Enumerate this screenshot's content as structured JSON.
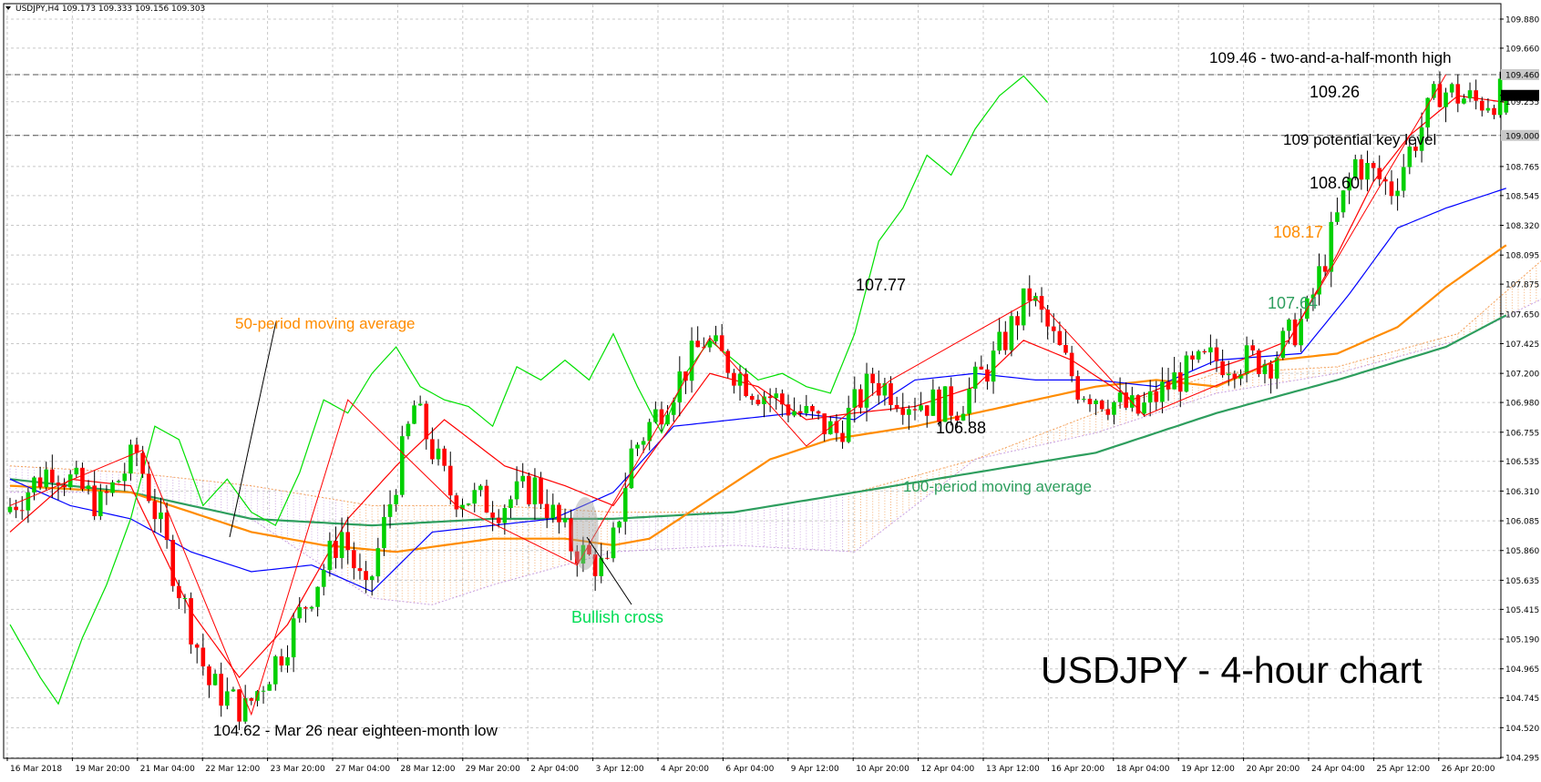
{
  "header": {
    "symbol_info": "USDJPY,H4  109.173 109.333 109.156 109.303"
  },
  "title": "USDJPY - 4-hour chart",
  "price_axis": {
    "ticks": [
      "109.880",
      "109.660",
      "109.460",
      "109.303",
      "109.255",
      "109.000",
      "108.765",
      "108.545",
      "108.320",
      "108.095",
      "107.875",
      "107.650",
      "107.425",
      "107.200",
      "106.980",
      "106.755",
      "106.535",
      "106.310",
      "106.085",
      "105.860",
      "105.635",
      "105.415",
      "105.190",
      "104.965",
      "104.745",
      "104.520",
      "104.295"
    ],
    "current_price": "109.303",
    "highlight_levels": [
      "109.460",
      "109.000"
    ]
  },
  "time_axis": {
    "ticks": [
      "16 Mar 2018",
      "19 Mar 20:00",
      "21 Mar 04:00",
      "22 Mar 12:00",
      "23 Mar 20:00",
      "27 Mar 04:00",
      "28 Mar 12:00",
      "29 Mar 20:00",
      "2 Apr 04:00",
      "3 Apr 12:00",
      "4 Apr 20:00",
      "6 Apr 04:00",
      "9 Apr 12:00",
      "10 Apr 20:00",
      "12 Apr 04:00",
      "13 Apr 12:00",
      "16 Apr 20:00",
      "18 Apr 04:00",
      "19 Apr 12:00",
      "20 Apr 20:00",
      "24 Apr 04:00",
      "25 Apr 12:00",
      "26 Apr 20:00"
    ]
  },
  "annotations": {
    "high": "109.46 -  two-and-a-half-month high",
    "last": "109.26",
    "key_level": "109 potential key level",
    "kijun_val": "108.60",
    "ma50_val": "108.17",
    "ma100_val": "107.64",
    "peak": "107.77",
    "trough": "106.88",
    "ma50_label": "50-period moving average",
    "ma100_label": "100-period moving average",
    "bullish_cross": "Bullish cross",
    "low": "104.62 - Mar 26 near eighteen-month low"
  },
  "colors": {
    "bull": "#00d000",
    "bear": "#ff0000",
    "tenkan": "#ff0000",
    "kijun": "#0000ff",
    "chikou": "#00e000",
    "ma50": "#ff8c00",
    "ma100": "#2e9e5e",
    "cloud_up": "#f4a460",
    "cloud_down": "#c8a0e0",
    "zigzag": "#ff0000",
    "cross_marker": "#a0a0a0"
  },
  "chart_data": {
    "type": "candlestick",
    "symbol": "USDJPY",
    "timeframe": "H4",
    "ylim": [
      104.295,
      109.99
    ],
    "last_bar": {
      "open": 109.173,
      "high": 109.333,
      "low": 109.156,
      "close": 109.303
    },
    "levels": [
      109.46,
      109.0
    ],
    "waypoints": [
      [
        0,
        106.15
      ],
      [
        8,
        106.5
      ],
      [
        16,
        106.2
      ],
      [
        22,
        106.6
      ],
      [
        34,
        104.85
      ],
      [
        40,
        104.65
      ],
      [
        46,
        105.1
      ],
      [
        56,
        106.0
      ],
      [
        60,
        105.5
      ],
      [
        68,
        106.95
      ],
      [
        74,
        106.3
      ],
      [
        82,
        106.2
      ],
      [
        88,
        106.35
      ],
      [
        94,
        105.9
      ],
      [
        100,
        105.7
      ],
      [
        104,
        106.6
      ],
      [
        116,
        107.45
      ],
      [
        124,
        107.1
      ],
      [
        130,
        106.95
      ],
      [
        138,
        106.75
      ],
      [
        144,
        107.15
      ],
      [
        150,
        107.0
      ],
      [
        158,
        106.95
      ],
      [
        164,
        107.3
      ],
      [
        170,
        107.8
      ],
      [
        178,
        107.1
      ],
      [
        188,
        106.9
      ],
      [
        194,
        107.15
      ],
      [
        200,
        107.3
      ],
      [
        210,
        107.3
      ],
      [
        216,
        107.65
      ],
      [
        224,
        108.8
      ],
      [
        230,
        108.6
      ],
      [
        238,
        109.35
      ],
      [
        244,
        109.25
      ],
      [
        248,
        109.3
      ]
    ],
    "ma50_pts": [
      [
        0,
        106.35
      ],
      [
        20,
        106.3
      ],
      [
        40,
        106.0
      ],
      [
        52,
        105.9
      ],
      [
        64,
        105.85
      ],
      [
        80,
        105.95
      ],
      [
        92,
        105.95
      ],
      [
        100,
        105.9
      ],
      [
        106,
        105.95
      ],
      [
        116,
        106.25
      ],
      [
        126,
        106.55
      ],
      [
        136,
        106.7
      ],
      [
        150,
        106.8
      ],
      [
        160,
        106.9
      ],
      [
        170,
        107.0
      ],
      [
        180,
        107.1
      ],
      [
        190,
        107.15
      ],
      [
        200,
        107.1
      ],
      [
        210,
        107.3
      ],
      [
        220,
        107.35
      ],
      [
        230,
        107.55
      ],
      [
        238,
        107.85
      ],
      [
        248,
        108.17
      ]
    ],
    "ma100_pts": [
      [
        0,
        106.4
      ],
      [
        20,
        106.3
      ],
      [
        40,
        106.1
      ],
      [
        60,
        106.05
      ],
      [
        80,
        106.1
      ],
      [
        100,
        106.1
      ],
      [
        120,
        106.15
      ],
      [
        140,
        106.3
      ],
      [
        160,
        106.45
      ],
      [
        180,
        106.6
      ],
      [
        200,
        106.9
      ],
      [
        220,
        107.15
      ],
      [
        238,
        107.4
      ],
      [
        248,
        107.64
      ]
    ],
    "kijun_pts": [
      [
        0,
        106.4
      ],
      [
        10,
        106.2
      ],
      [
        20,
        106.1
      ],
      [
        30,
        105.85
      ],
      [
        40,
        105.7
      ],
      [
        50,
        105.75
      ],
      [
        60,
        105.55
      ],
      [
        70,
        106.0
      ],
      [
        90,
        106.1
      ],
      [
        100,
        106.3
      ],
      [
        110,
        106.8
      ],
      [
        120,
        106.85
      ],
      [
        130,
        106.9
      ],
      [
        140,
        106.85
      ],
      [
        150,
        107.15
      ],
      [
        160,
        107.2
      ],
      [
        170,
        107.15
      ],
      [
        180,
        107.15
      ],
      [
        190,
        107.1
      ],
      [
        200,
        107.3
      ],
      [
        214,
        107.35
      ],
      [
        222,
        107.8
      ],
      [
        230,
        108.3
      ],
      [
        238,
        108.45
      ],
      [
        248,
        108.6
      ]
    ],
    "tenkan_pts": [
      [
        0,
        106.0
      ],
      [
        10,
        106.4
      ],
      [
        20,
        106.35
      ],
      [
        30,
        105.4
      ],
      [
        38,
        104.9
      ],
      [
        46,
        105.3
      ],
      [
        56,
        106.1
      ],
      [
        64,
        106.5
      ],
      [
        72,
        106.85
      ],
      [
        82,
        106.5
      ],
      [
        92,
        106.35
      ],
      [
        100,
        106.2
      ],
      [
        108,
        106.7
      ],
      [
        116,
        107.2
      ],
      [
        124,
        107.1
      ],
      [
        132,
        106.85
      ],
      [
        140,
        106.9
      ],
      [
        150,
        106.95
      ],
      [
        160,
        107.1
      ],
      [
        168,
        107.45
      ],
      [
        176,
        107.3
      ],
      [
        186,
        107.0
      ],
      [
        194,
        107.15
      ],
      [
        204,
        107.3
      ],
      [
        212,
        107.45
      ],
      [
        220,
        108.1
      ],
      [
        226,
        108.65
      ],
      [
        232,
        109.0
      ],
      [
        240,
        109.3
      ],
      [
        248,
        109.25
      ]
    ],
    "chikou_pts": [
      [
        0,
        105.3
      ],
      [
        5,
        104.9
      ],
      [
        8,
        104.7
      ],
      [
        12,
        105.2
      ],
      [
        16,
        105.6
      ],
      [
        20,
        106.1
      ],
      [
        24,
        106.8
      ],
      [
        28,
        106.7
      ],
      [
        32,
        106.2
      ],
      [
        36,
        106.4
      ],
      [
        40,
        106.15
      ],
      [
        44,
        106.05
      ],
      [
        48,
        106.45
      ],
      [
        52,
        107.0
      ],
      [
        56,
        106.9
      ],
      [
        60,
        107.2
      ],
      [
        64,
        107.4
      ],
      [
        68,
        107.1
      ],
      [
        72,
        107.0
      ],
      [
        76,
        106.95
      ],
      [
        80,
        106.8
      ],
      [
        84,
        107.25
      ],
      [
        88,
        107.15
      ],
      [
        92,
        107.3
      ],
      [
        96,
        107.15
      ],
      [
        100,
        107.5
      ],
      [
        104,
        107.1
      ],
      [
        108,
        106.75
      ],
      [
        112,
        107.2
      ],
      [
        116,
        107.45
      ],
      [
        120,
        107.3
      ],
      [
        124,
        107.15
      ],
      [
        128,
        107.2
      ],
      [
        132,
        107.1
      ],
      [
        136,
        107.05
      ],
      [
        140,
        107.5
      ],
      [
        144,
        108.2
      ],
      [
        148,
        108.45
      ],
      [
        152,
        108.85
      ],
      [
        156,
        108.7
      ],
      [
        160,
        109.05
      ],
      [
        164,
        109.3
      ],
      [
        168,
        109.45
      ],
      [
        172,
        109.25
      ]
    ],
    "cloud_top_pts": [
      [
        0,
        106.5
      ],
      [
        20,
        106.45
      ],
      [
        40,
        106.35
      ],
      [
        60,
        106.2
      ],
      [
        80,
        106.2
      ],
      [
        100,
        106.15
      ],
      [
        120,
        106.15
      ],
      [
        140,
        106.3
      ],
      [
        160,
        106.55
      ],
      [
        180,
        106.9
      ],
      [
        200,
        107.2
      ],
      [
        220,
        107.25
      ],
      [
        240,
        107.5
      ],
      [
        260,
        108.3
      ],
      [
        268,
        108.9
      ]
    ],
    "cloud_bot_pts": [
      [
        0,
        106.3
      ],
      [
        20,
        106.3
      ],
      [
        40,
        106.1
      ],
      [
        60,
        105.5
      ],
      [
        70,
        105.45
      ],
      [
        80,
        105.6
      ],
      [
        100,
        105.85
      ],
      [
        120,
        105.9
      ],
      [
        140,
        105.85
      ],
      [
        160,
        106.55
      ],
      [
        180,
        106.75
      ],
      [
        200,
        107.05
      ],
      [
        220,
        107.2
      ],
      [
        240,
        107.45
      ],
      [
        260,
        107.9
      ],
      [
        268,
        108.1
      ]
    ]
  }
}
